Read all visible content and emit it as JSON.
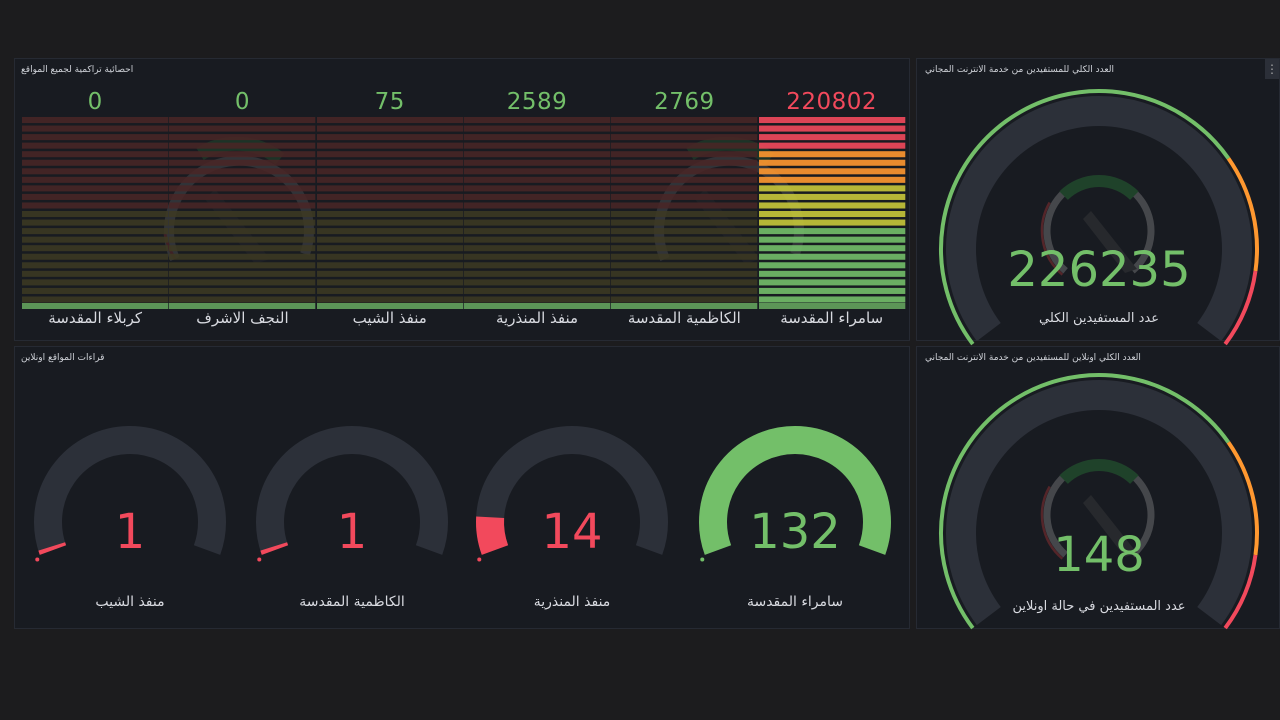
{
  "colors": {
    "green": "#73bf69",
    "red": "#f2495c",
    "orange": "#ff9830",
    "track": "#2c3039",
    "panel_bg": "#181b21"
  },
  "panels": {
    "cumulative": {
      "title": "احصائية تراكمية لجميع المواقع",
      "bars": [
        {
          "label": "سامراء المقدسة",
          "value": "220802",
          "level": 1.0,
          "color": "#f2495c"
        },
        {
          "label": "الكاظمية المقدسة",
          "value": "2769",
          "level": 0.012,
          "color": "#73bf69"
        },
        {
          "label": "منفذ المنذرية",
          "value": "2589",
          "level": 0.012,
          "color": "#73bf69"
        },
        {
          "label": "منفذ الشيب",
          "value": "75",
          "level": 0.0003,
          "color": "#73bf69"
        },
        {
          "label": "النجف الاشرف",
          "value": "0",
          "level": 0,
          "color": "#73bf69"
        },
        {
          "label": "كربلاء المقدسة",
          "value": "0",
          "level": 0,
          "color": "#73bf69"
        }
      ]
    },
    "total_beneficiaries": {
      "title": "العدد الكلي للمستفيدين من خدمة الانترنت المجاني",
      "value": "226235",
      "label": "عدد المستفيدين الكلي",
      "level": 1.0,
      "menu_icon": "vertical-dots-icon"
    },
    "online_sites": {
      "title": "قراءات المواقع اونلاين",
      "gauges": [
        {
          "label": "سامراء المقدسة",
          "value": "132",
          "level": 1.0,
          "color": "#73bf69"
        },
        {
          "label": "منفذ المنذرية",
          "value": "14",
          "level": 0.106,
          "color": "#f2495c"
        },
        {
          "label": "الكاظمية المقدسة",
          "value": "1",
          "level": 0.008,
          "color": "#f2495c"
        },
        {
          "label": "منفذ الشيب",
          "value": "1",
          "level": 0.008,
          "color": "#f2495c"
        }
      ]
    },
    "online_beneficiaries": {
      "title": "العدد الكلي اونلاين للمستفيدين من خدمة الانترنت المجاني",
      "value": "148",
      "label": "عدد المستفيدين في حالة اونلاين",
      "level": 1.0
    }
  }
}
